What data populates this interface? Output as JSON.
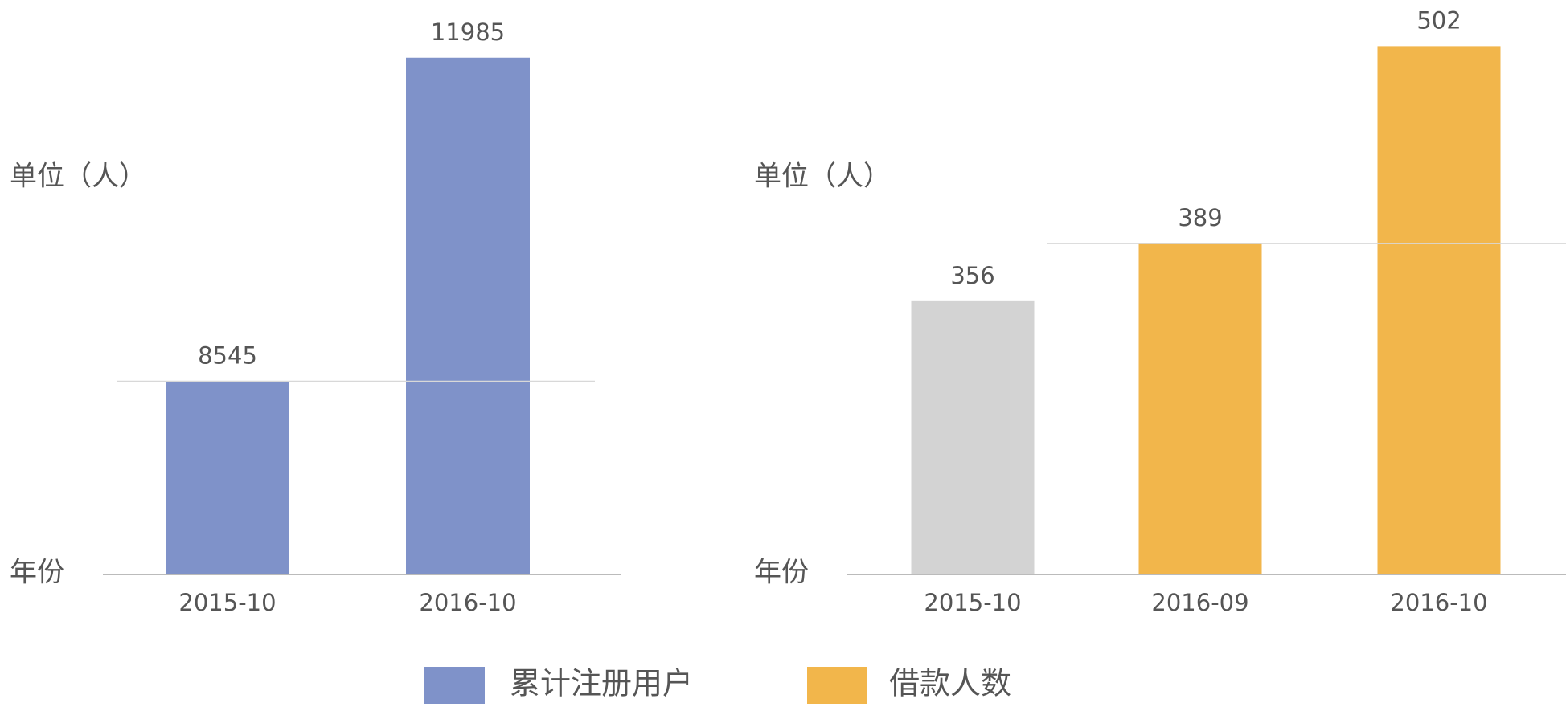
{
  "chart_data": [
    {
      "type": "bar",
      "y_label": "单位（人）",
      "x_label": "年份",
      "categories": [
        "2015-10",
        "2016-10"
      ],
      "series": [
        {
          "name": "累计注册用户",
          "color": "#7f92c9",
          "values": [
            8545,
            11985
          ]
        }
      ],
      "ylim": [
        6500,
        12000
      ],
      "reference_value": 8545
    },
    {
      "type": "bar",
      "y_label": "单位（人）",
      "x_label": "年份",
      "categories": [
        "2015-10",
        "2016-09",
        "2016-10"
      ],
      "series": [
        {
          "name": "借款人数",
          "color": "#f2b64b",
          "colors": [
            "#d3d3d3",
            "#f2b64b",
            "#f2b64b"
          ],
          "values": [
            356,
            389,
            502
          ]
        }
      ],
      "ylim": [
        200,
        510
      ],
      "reference_value": 389
    }
  ]
}
